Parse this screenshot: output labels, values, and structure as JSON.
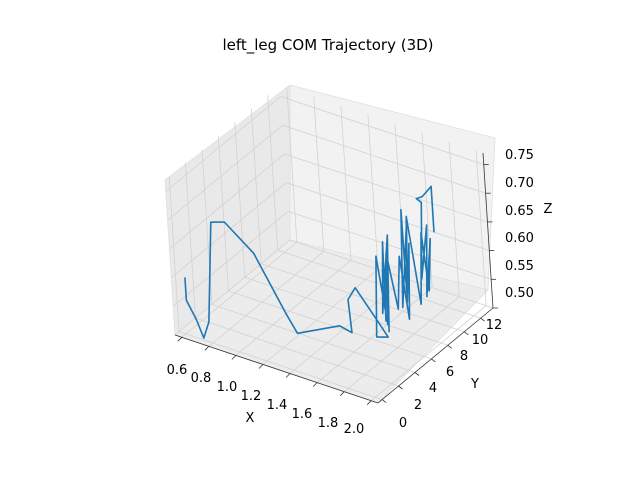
{
  "chart_data": {
    "type": "line",
    "projection": "3d",
    "title": "left_leg COM Trajectory (3D)",
    "xlabel": "X",
    "ylabel": "Y",
    "zlabel": "Z",
    "xlim": [
      0.55,
      2.05
    ],
    "ylim": [
      -0.5,
      13.5
    ],
    "zlim": [
      0.5,
      0.77
    ],
    "xticks": [
      "0.6",
      "0.8",
      "1.0",
      "1.2",
      "1.4",
      "1.6",
      "1.8",
      "2.0"
    ],
    "yticks": [
      "0",
      "2",
      "4",
      "6",
      "8",
      "10",
      "12"
    ],
    "zticks": [
      "0.50",
      "0.55",
      "0.60",
      "0.65",
      "0.70",
      "0.75"
    ],
    "grid": true,
    "series": [
      {
        "color": "#1f77b4",
        "points_xyz_approx": [
          [
            0.62,
            0.0,
            0.6
          ],
          [
            0.62,
            0.0,
            0.56
          ],
          [
            0.68,
            0.1,
            0.53
          ],
          [
            0.72,
            0.2,
            0.5
          ],
          [
            0.76,
            0.3,
            0.53
          ],
          [
            0.78,
            0.5,
            0.62
          ],
          [
            0.79,
            0.8,
            0.7
          ],
          [
            0.86,
            1.3,
            0.7
          ],
          [
            1.02,
            2.0,
            0.65
          ],
          [
            1.2,
            2.6,
            0.55
          ],
          [
            1.26,
            2.8,
            0.52
          ],
          [
            1.36,
            3.0,
            0.53
          ],
          [
            1.55,
            3.3,
            0.55
          ],
          [
            1.62,
            3.6,
            0.54
          ],
          [
            1.58,
            4.0,
            0.59
          ],
          [
            1.62,
            4.3,
            0.61
          ],
          [
            1.75,
            4.6,
            0.56
          ],
          [
            1.8,
            5.0,
            0.53
          ],
          [
            1.75,
            6.5,
            0.57
          ],
          [
            1.72,
            8.0,
            0.63
          ],
          [
            1.7,
            9.5,
            0.66
          ],
          [
            1.72,
            10.5,
            0.7
          ],
          [
            1.7,
            11.5,
            0.69
          ],
          [
            1.72,
            12.3,
            0.7
          ],
          [
            1.72,
            12.3,
            0.62
          ]
        ]
      }
    ]
  }
}
